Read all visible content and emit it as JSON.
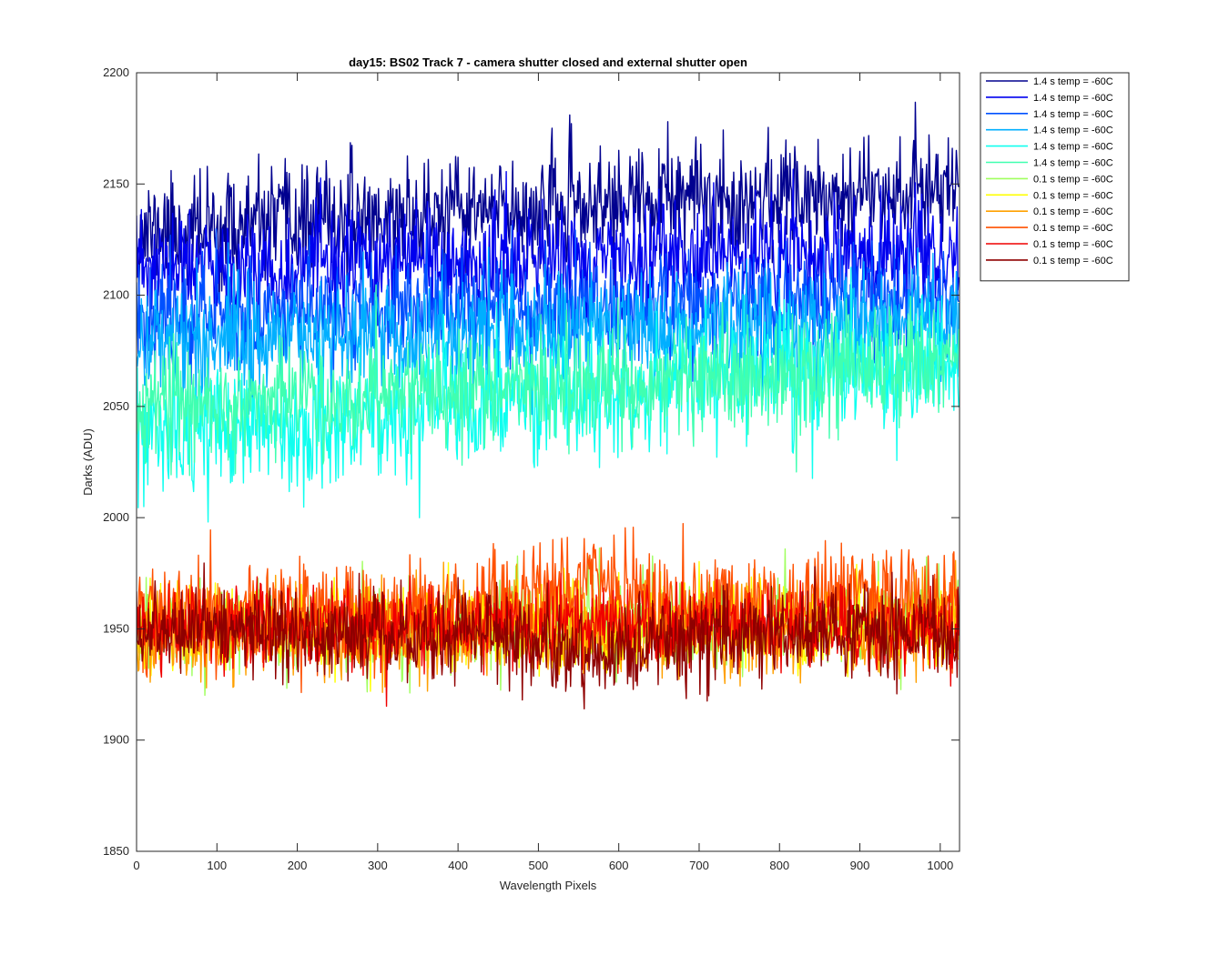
{
  "chart_data": {
    "type": "line",
    "title": "day15: BS02  Track 7 - camera shutter closed and external shutter open",
    "xlabel": "Wavelength Pixels",
    "ylabel": "Darks (ADU)",
    "xlim": [
      0,
      1024
    ],
    "ylim": [
      1850,
      2200
    ],
    "x_ticks": [
      0,
      100,
      200,
      300,
      400,
      500,
      600,
      700,
      800,
      900,
      1000
    ],
    "y_ticks": [
      1850,
      1900,
      1950,
      2000,
      2050,
      2100,
      2150,
      2200
    ],
    "x_tick_labels": [
      "0",
      "100",
      "200",
      "300",
      "400",
      "500",
      "600",
      "700",
      "800",
      "900",
      "1000"
    ],
    "y_tick_labels": [
      "1850",
      "1900",
      "1950",
      "2000",
      "2050",
      "2100",
      "2150",
      "2200"
    ],
    "grid": false,
    "legend_position": "outside-top-right",
    "n_points": 1024,
    "series": [
      {
        "name": "1.4 s temp = -60C",
        "color": "#00008F",
        "mean_start": 2128,
        "mean_end": 2150,
        "noise": 12,
        "seed": 11
      },
      {
        "name": "1.4 s temp = -60C",
        "color": "#0000EF",
        "mean_start": 2112,
        "mean_end": 2118,
        "noise": 12,
        "seed": 23
      },
      {
        "name": "1.4 s temp = -60C",
        "color": "#0050FF",
        "mean_start": 2092,
        "mean_end": 2098,
        "noise": 12,
        "seed": 37
      },
      {
        "name": "1.4 s temp = -60C",
        "color": "#00AFFF",
        "mean_start": 2080,
        "mean_end": 2088,
        "noise": 13,
        "seed": 41
      },
      {
        "name": "1.4 s temp = -60C",
        "color": "#10FFEF",
        "mean_start": 2035,
        "mean_end": 2072,
        "noise": 14,
        "seed": 53
      },
      {
        "name": "1.4 s temp = -60C",
        "color": "#40FFB0",
        "mean_start": 2050,
        "mean_end": 2068,
        "noise": 12,
        "seed": 67
      },
      {
        "name": "0.1 s temp = -60C",
        "color": "#A0FF5F",
        "mean_start": 1950,
        "mean_end": 1954,
        "noise": 10,
        "seed": 71
      },
      {
        "name": "0.1 s temp = -60C",
        "color": "#FFFF00",
        "mean_start": 1950,
        "mean_end": 1952,
        "noise": 10,
        "seed": 83
      },
      {
        "name": "0.1 s temp = -60C",
        "color": "#FFA000",
        "mean_start": 1946,
        "mean_end": 1950,
        "noise": 10,
        "seed": 97
      },
      {
        "name": "0.1 s temp = -60C",
        "color": "#FF5000",
        "mean_start": 1955,
        "mean_end": 1962,
        "noise": 12,
        "seed": 101,
        "bump": 12
      },
      {
        "name": "0.1 s temp = -60C",
        "color": "#EF0000",
        "mean_start": 1952,
        "mean_end": 1950,
        "noise": 9,
        "seed": 113
      },
      {
        "name": "0.1 s temp = -60C",
        "color": "#8F0000",
        "mean_start": 1950,
        "mean_end": 1948,
        "noise": 10,
        "seed": 127,
        "dip": 10
      }
    ]
  }
}
